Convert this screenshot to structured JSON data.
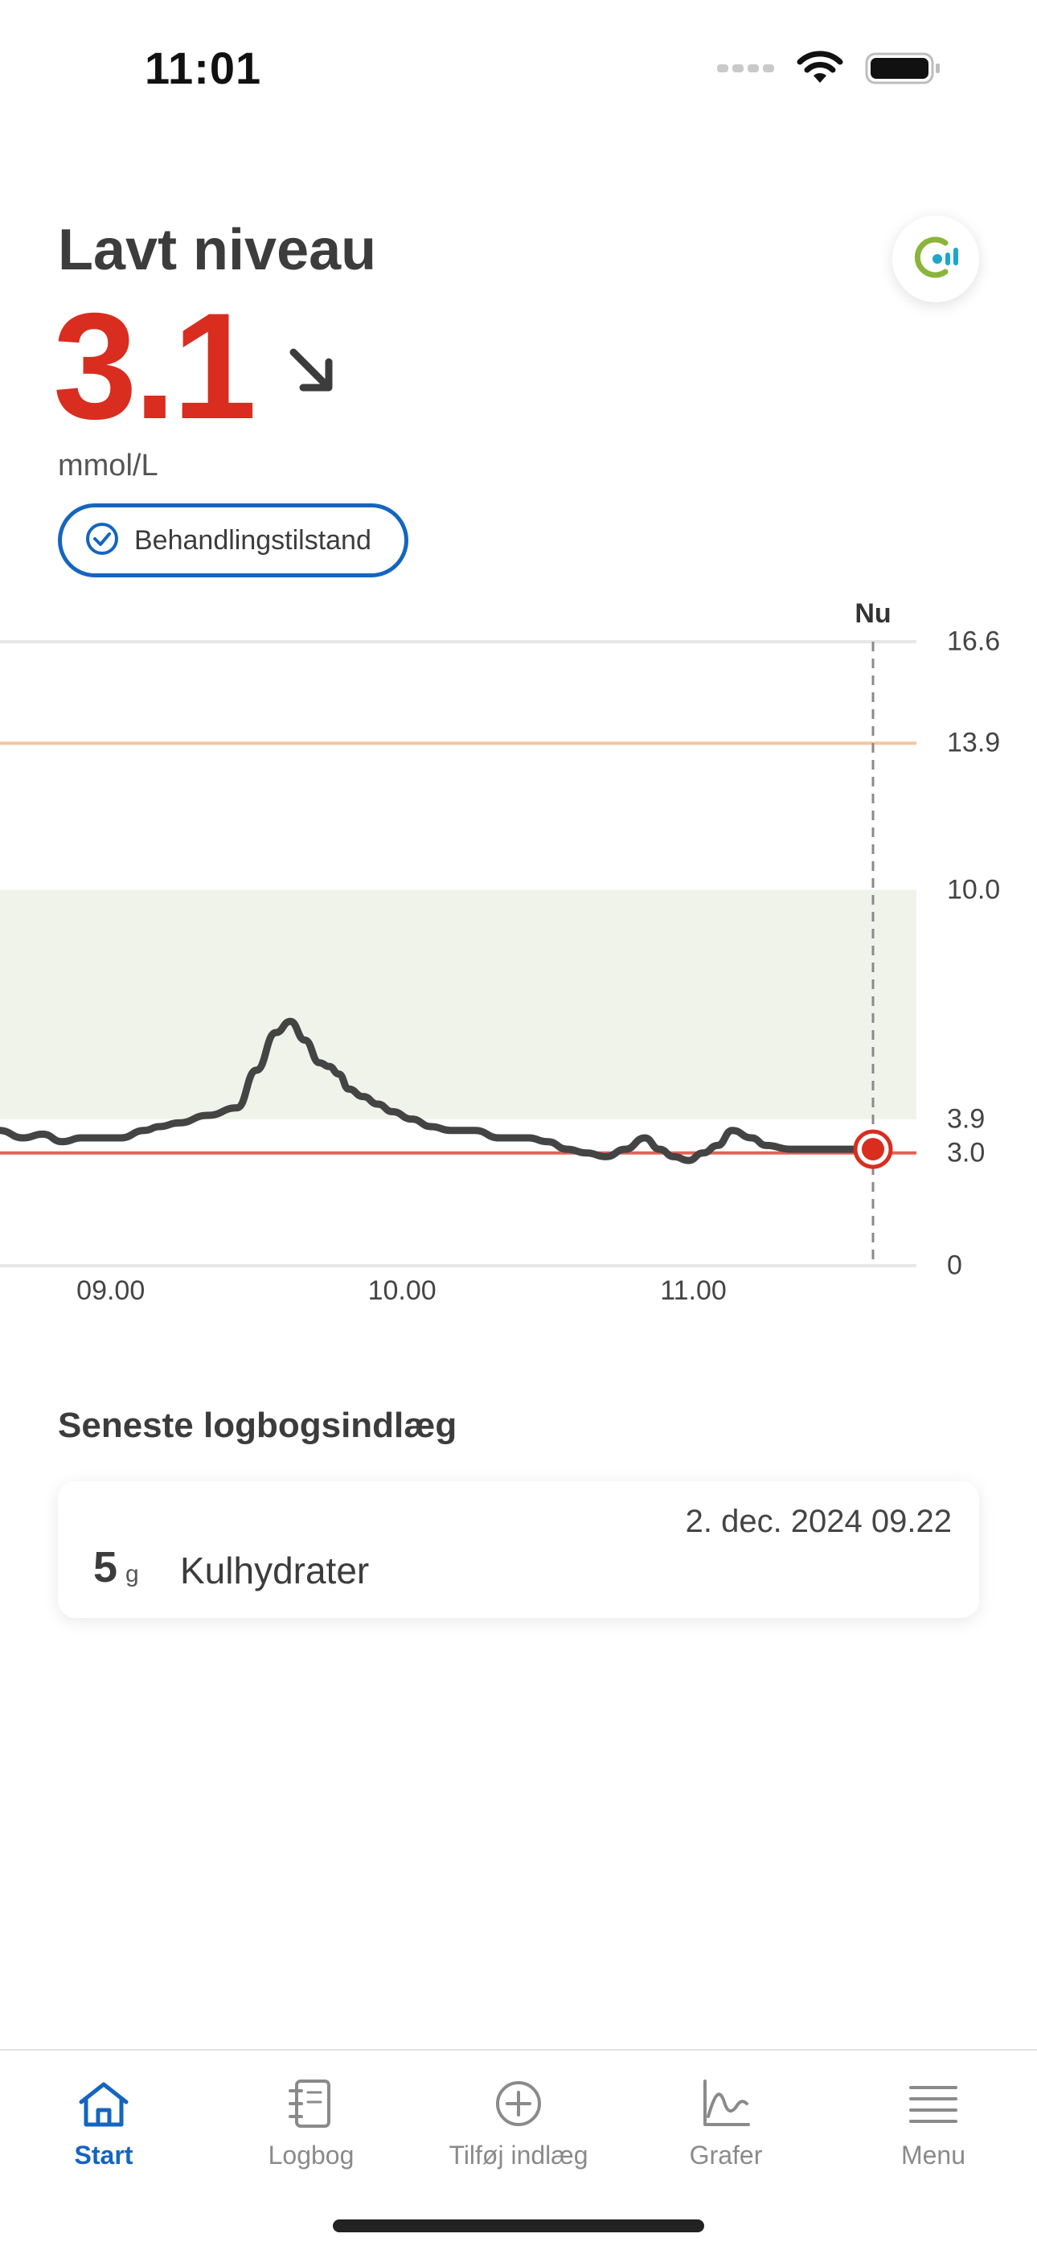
{
  "status_bar": {
    "time": "11:01",
    "icons": [
      "signal-icon",
      "wifi-icon",
      "battery-icon"
    ]
  },
  "header": {
    "title": "Lavt niveau",
    "value": "3.1",
    "trend": "falling-arrow-icon",
    "unit": "mmol/L",
    "treatment_label": "Behandlingstilstand"
  },
  "colors": {
    "low": "#d92d20",
    "high": "#f6c59d",
    "target_band": "#f0f3ea",
    "accent": "#1565c0",
    "line": "#444444"
  },
  "chart_data": {
    "type": "line",
    "now_label": "Nu",
    "y_ticks": [
      "16.6",
      "13.9",
      "10.0",
      "3.9",
      "3.0",
      "0"
    ],
    "x_ticks": [
      "09.00",
      "10.00",
      "11.00"
    ],
    "ylim": [
      0,
      16.6
    ],
    "x_hours": [
      8.62,
      11.67
    ],
    "target_range": [
      3.9,
      10.0
    ],
    "high_threshold": 13.9,
    "low_threshold": 3.0,
    "now_time": "11:37",
    "series": [
      {
        "x": [
          "08:37",
          "08:42",
          "08:46",
          "08:50",
          "08:54",
          "08:58",
          "09:02",
          "09:07",
          "09:10",
          "09:14",
          "09:20",
          "09:26",
          "09:30",
          "09:34",
          "09:37",
          "09:40",
          "09:43",
          "09:45",
          "09:47",
          "09:49",
          "09:52",
          "09:55",
          "09:58",
          "10:02",
          "10:06",
          "10:10",
          "10:15",
          "10:20",
          "10:26",
          "10:30",
          "10:34",
          "10:38",
          "10:42",
          "10:46",
          "10:50",
          "10:53",
          "10:56",
          "10:59",
          "11:02",
          "11:05",
          "11:08",
          "11:12",
          "11:15",
          "11:20",
          "11:24",
          "11:27",
          "11:32",
          "11:35",
          "11:37"
        ],
        "y": [
          3.6,
          3.4,
          3.5,
          3.3,
          3.4,
          3.4,
          3.4,
          3.6,
          3.7,
          3.8,
          4.0,
          4.2,
          5.2,
          6.2,
          6.5,
          6.0,
          5.4,
          5.3,
          5.1,
          4.7,
          4.5,
          4.3,
          4.1,
          3.9,
          3.7,
          3.6,
          3.6,
          3.4,
          3.4,
          3.3,
          3.1,
          3.0,
          2.9,
          3.1,
          3.4,
          3.1,
          2.9,
          2.8,
          3.0,
          3.2,
          3.6,
          3.4,
          3.2,
          3.1,
          3.1,
          3.1,
          3.1,
          3.1,
          3.1
        ]
      }
    ],
    "current_point": {
      "x": "11:37",
      "y": 3.1
    }
  },
  "logbook": {
    "section_title": "Seneste logbogsindlæg",
    "entries": [
      {
        "amount": "5",
        "unit": "g",
        "kind": "Kulhydrater",
        "date": "2. dec. 2024 09.22"
      }
    ]
  },
  "tab_bar": {
    "tabs": [
      {
        "label": "Start",
        "icon": "home-icon",
        "active": true
      },
      {
        "label": "Logbog",
        "icon": "logbook-icon",
        "active": false
      },
      {
        "label": "Tilføj indlæg",
        "icon": "add-entry-icon",
        "active": false
      },
      {
        "label": "Grafer",
        "icon": "graph-icon",
        "active": false
      },
      {
        "label": "Menu",
        "icon": "menu-icon",
        "active": false
      }
    ]
  }
}
